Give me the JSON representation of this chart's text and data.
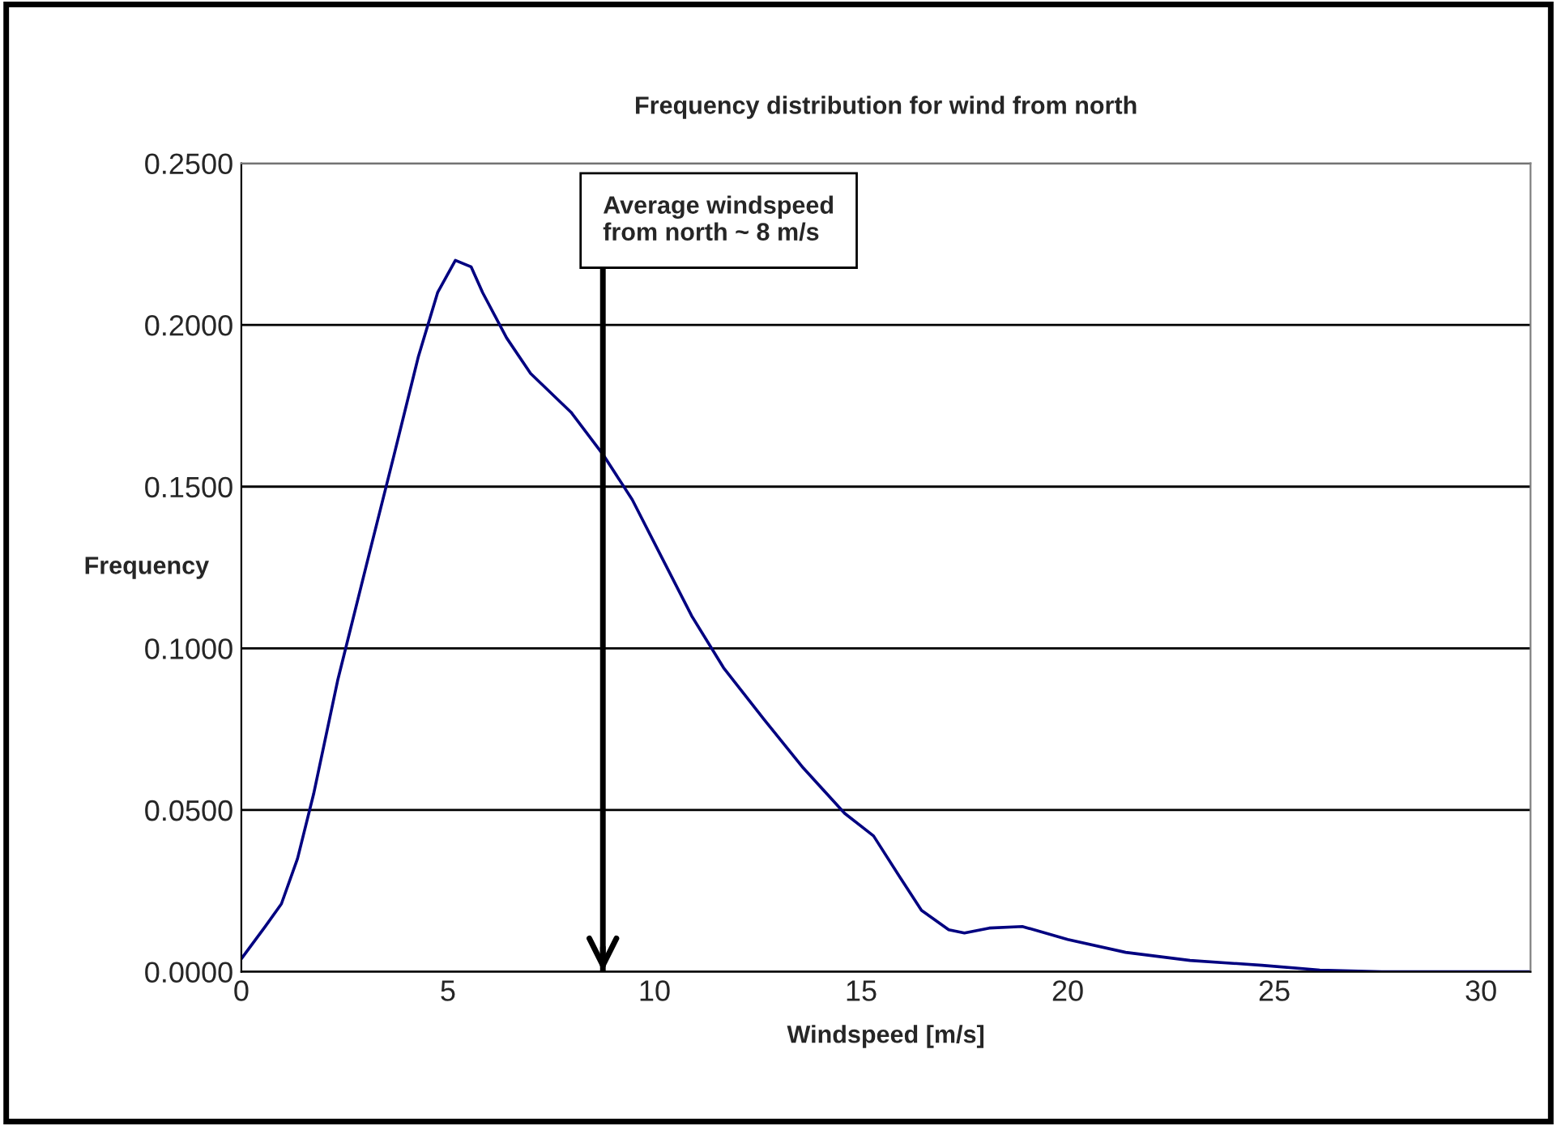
{
  "chart_data": {
    "type": "line",
    "title": "Frequency distribution for wind from north",
    "xlabel": "Windspeed [m/s]",
    "ylabel": "Frequency",
    "series": [
      {
        "color": "#000080",
        "x": [
          0,
          0.58,
          0.97,
          1.36,
          1.75,
          2.33,
          3.11,
          3.7,
          4.28,
          4.75,
          5.18,
          5.56,
          5.84,
          6.42,
          7.0,
          7.98,
          8.75,
          9.46,
          10.1,
          10.9,
          11.67,
          12.65,
          13.6,
          14.6,
          15.3,
          15.95,
          16.46,
          17.12,
          17.5,
          18.1,
          18.9,
          20.0,
          21.4,
          22.96,
          24.7,
          26.1,
          27.6,
          31.2
        ],
        "values": [
          0.004,
          0.014,
          0.021,
          0.035,
          0.055,
          0.09,
          0.13,
          0.16,
          0.19,
          0.21,
          0.22,
          0.218,
          0.21,
          0.196,
          0.185,
          0.173,
          0.16,
          0.146,
          0.13,
          0.11,
          0.094,
          0.078,
          0.063,
          0.049,
          0.042,
          0.029,
          0.019,
          0.013,
          0.012,
          0.0135,
          0.014,
          0.01,
          0.006,
          0.0035,
          0.002,
          0.0005,
          0,
          0
        ]
      }
    ],
    "xlim": [
      0,
      31.2
    ],
    "xticks": [
      0,
      5,
      10,
      15,
      20,
      25,
      30
    ],
    "ylim": [
      0,
      0.25
    ],
    "yticks": [
      {
        "value": 0,
        "label": "0.0000"
      },
      {
        "value": 0.05,
        "label": "0.0500"
      },
      {
        "value": 0.1,
        "label": "0.1000"
      },
      {
        "value": 0.15,
        "label": "0.1500"
      },
      {
        "value": 0.2,
        "label": "0.2000"
      },
      {
        "value": 0.25,
        "label": "0.2500"
      }
    ],
    "grid": "y",
    "legend": false,
    "ref_lines": [
      {
        "axis": "x",
        "value": 8.75,
        "label": "Average windspeed\nfrom north ~ 8 m/s"
      }
    ]
  }
}
